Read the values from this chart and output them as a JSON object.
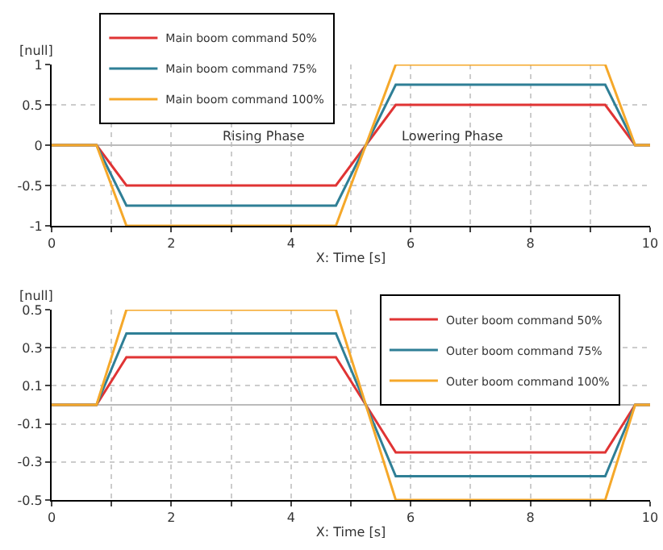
{
  "chart_data": [
    {
      "type": "line",
      "xlabel": "X: Time [s]",
      "ylabel": "[null]",
      "x": [
        0,
        0.75,
        1.25,
        4.75,
        5.75,
        9.25,
        9.75,
        10
      ],
      "xlim": [
        0,
        10
      ],
      "xticks": [
        0,
        {
          "value": 1,
          "label": null
        },
        2,
        {
          "value": 3,
          "label": null
        },
        4,
        {
          "value": 5,
          "label": null
        },
        6,
        {
          "value": 7,
          "label": null
        },
        8,
        {
          "value": 9,
          "label": null
        },
        10
      ],
      "ylim": [
        -1,
        1
      ],
      "yticks": [
        -1,
        -0.5,
        0,
        0.5,
        1
      ],
      "grid": true,
      "legend": "top left",
      "line_style": "solid",
      "marker": "none",
      "annotations": [
        "Rising Phase",
        "Lowering Phase"
      ],
      "series": [
        {
          "name": "Main boom command 50%",
          "color": "#e03434",
          "values": [
            0,
            0,
            -0.5,
            -0.5,
            0.5,
            0.5,
            0,
            0
          ]
        },
        {
          "name": "Main boom command 75%",
          "color": "#2f7f96",
          "values": [
            0,
            0,
            -0.75,
            -0.75,
            0.75,
            0.75,
            0,
            0
          ]
        },
        {
          "name": "Main boom command 100%",
          "color": "#f5a82a",
          "values": [
            0,
            0,
            -1,
            -1,
            1,
            1,
            0,
            0
          ]
        }
      ]
    },
    {
      "type": "line",
      "xlabel": "X: Time [s]",
      "ylabel": "[null]",
      "x": [
        0,
        0.75,
        1.25,
        4.75,
        5.75,
        9.25,
        9.75,
        10
      ],
      "xlim": [
        0,
        10
      ],
      "xticks": [
        0,
        {
          "value": 1,
          "label": null
        },
        2,
        {
          "value": 3,
          "label": null
        },
        4,
        {
          "value": 5,
          "label": null
        },
        6,
        {
          "value": 7,
          "label": null
        },
        8,
        {
          "value": 9,
          "label": null
        },
        10
      ],
      "ylim": [
        -0.5,
        0.5
      ],
      "yticks": [
        -0.5,
        -0.3,
        -0.1,
        0.1,
        0.3,
        0.5
      ],
      "grid": true,
      "legend": "top right",
      "line_style": "solid",
      "marker": "none",
      "series": [
        {
          "name": "Outer boom command 50%",
          "color": "#e03434",
          "values": [
            0,
            0,
            0.25,
            0.25,
            -0.25,
            -0.25,
            0,
            0
          ]
        },
        {
          "name": "Outer boom command 75%",
          "color": "#2f7f96",
          "values": [
            0,
            0,
            0.375,
            0.375,
            -0.375,
            -0.375,
            0,
            0
          ]
        },
        {
          "name": "Outer boom command 100%",
          "color": "#f5a82a",
          "values": [
            0,
            0,
            0.5,
            0.5,
            -0.5,
            -0.5,
            0,
            0
          ]
        }
      ]
    }
  ]
}
